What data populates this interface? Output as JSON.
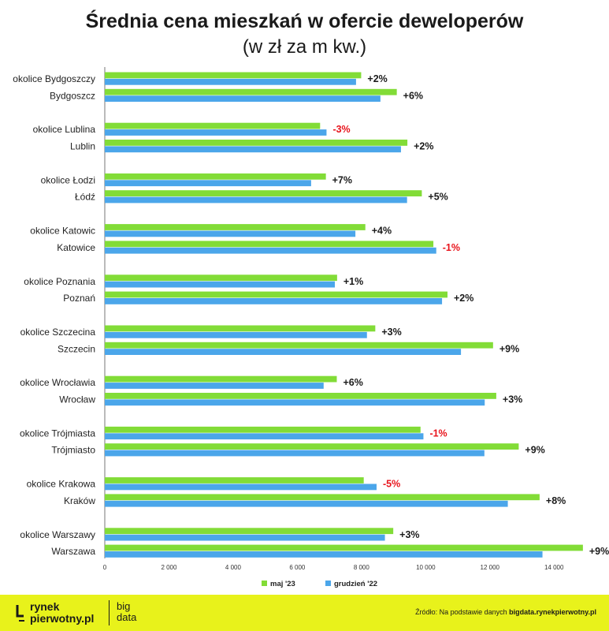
{
  "title": "Średnia cena mieszkań w ofercie deweloperów",
  "subtitle": "(w zł za m kw.)",
  "colors": {
    "maj23": "#82dc37",
    "gru22": "#4ba6ea",
    "positive": "#1a1a1a",
    "negative": "#e8131b"
  },
  "chart_data": {
    "type": "bar",
    "orientation": "horizontal",
    "title": "Średnia cena mieszkań w ofercie deweloperów",
    "subtitle": "(w zł za m kw.)",
    "xlim": [
      0,
      15000
    ],
    "xticks": [
      "0",
      "2 000",
      "4 000",
      "6 000",
      "8 000",
      "10 000",
      "12 000",
      "14 000"
    ],
    "categories": [
      "okolice Bydgoszczy",
      "Bydgoszcz",
      "okolice Lublina",
      "Lublin",
      "okolice Łodzi",
      "Łódź",
      "okolice Katowic",
      "Katowice",
      "okolice Poznania",
      "Poznań",
      "okolice Szczecina",
      "Szczecin",
      "okolice Wrocławia",
      "Wrocław",
      "okolice Trójmiasta",
      "Trójmiasto",
      "okolice Krakowa",
      "Kraków",
      "okolice Warszawy",
      "Warszawa"
    ],
    "series": [
      {
        "name": "maj '23",
        "values": [
          7990,
          9100,
          6710,
          9430,
          6890,
          9880,
          8120,
          10240,
          7240,
          10680,
          8430,
          12100,
          7230,
          12200,
          9840,
          12900,
          8070,
          13550,
          8990,
          14900
        ]
      },
      {
        "name": "grudzień '22",
        "values": [
          7830,
          8590,
          6910,
          9230,
          6430,
          9420,
          7810,
          10330,
          7170,
          10510,
          8170,
          11100,
          6820,
          11840,
          9930,
          11830,
          8470,
          12560,
          8730,
          13640
        ]
      }
    ],
    "change_labels": [
      "+2%",
      "+6%",
      "-3%",
      "+2%",
      "+7%",
      "+5%",
      "+4%",
      "-1%",
      "+1%",
      "+2%",
      "+3%",
      "+9%",
      "+6%",
      "+3%",
      "-1%",
      "+9%",
      "-5%",
      "+8%",
      "+3%",
      "+9%"
    ],
    "legend": "bottom-center"
  },
  "footer": {
    "logo_line1": "rynek",
    "logo_line2": "pierwotny.pl",
    "logo2_line1": "big",
    "logo2_line2": "data",
    "source_prefix": "Źródło: Na podstawie danych ",
    "source_bold": "bigdata.rynekpierwotny.pl"
  }
}
